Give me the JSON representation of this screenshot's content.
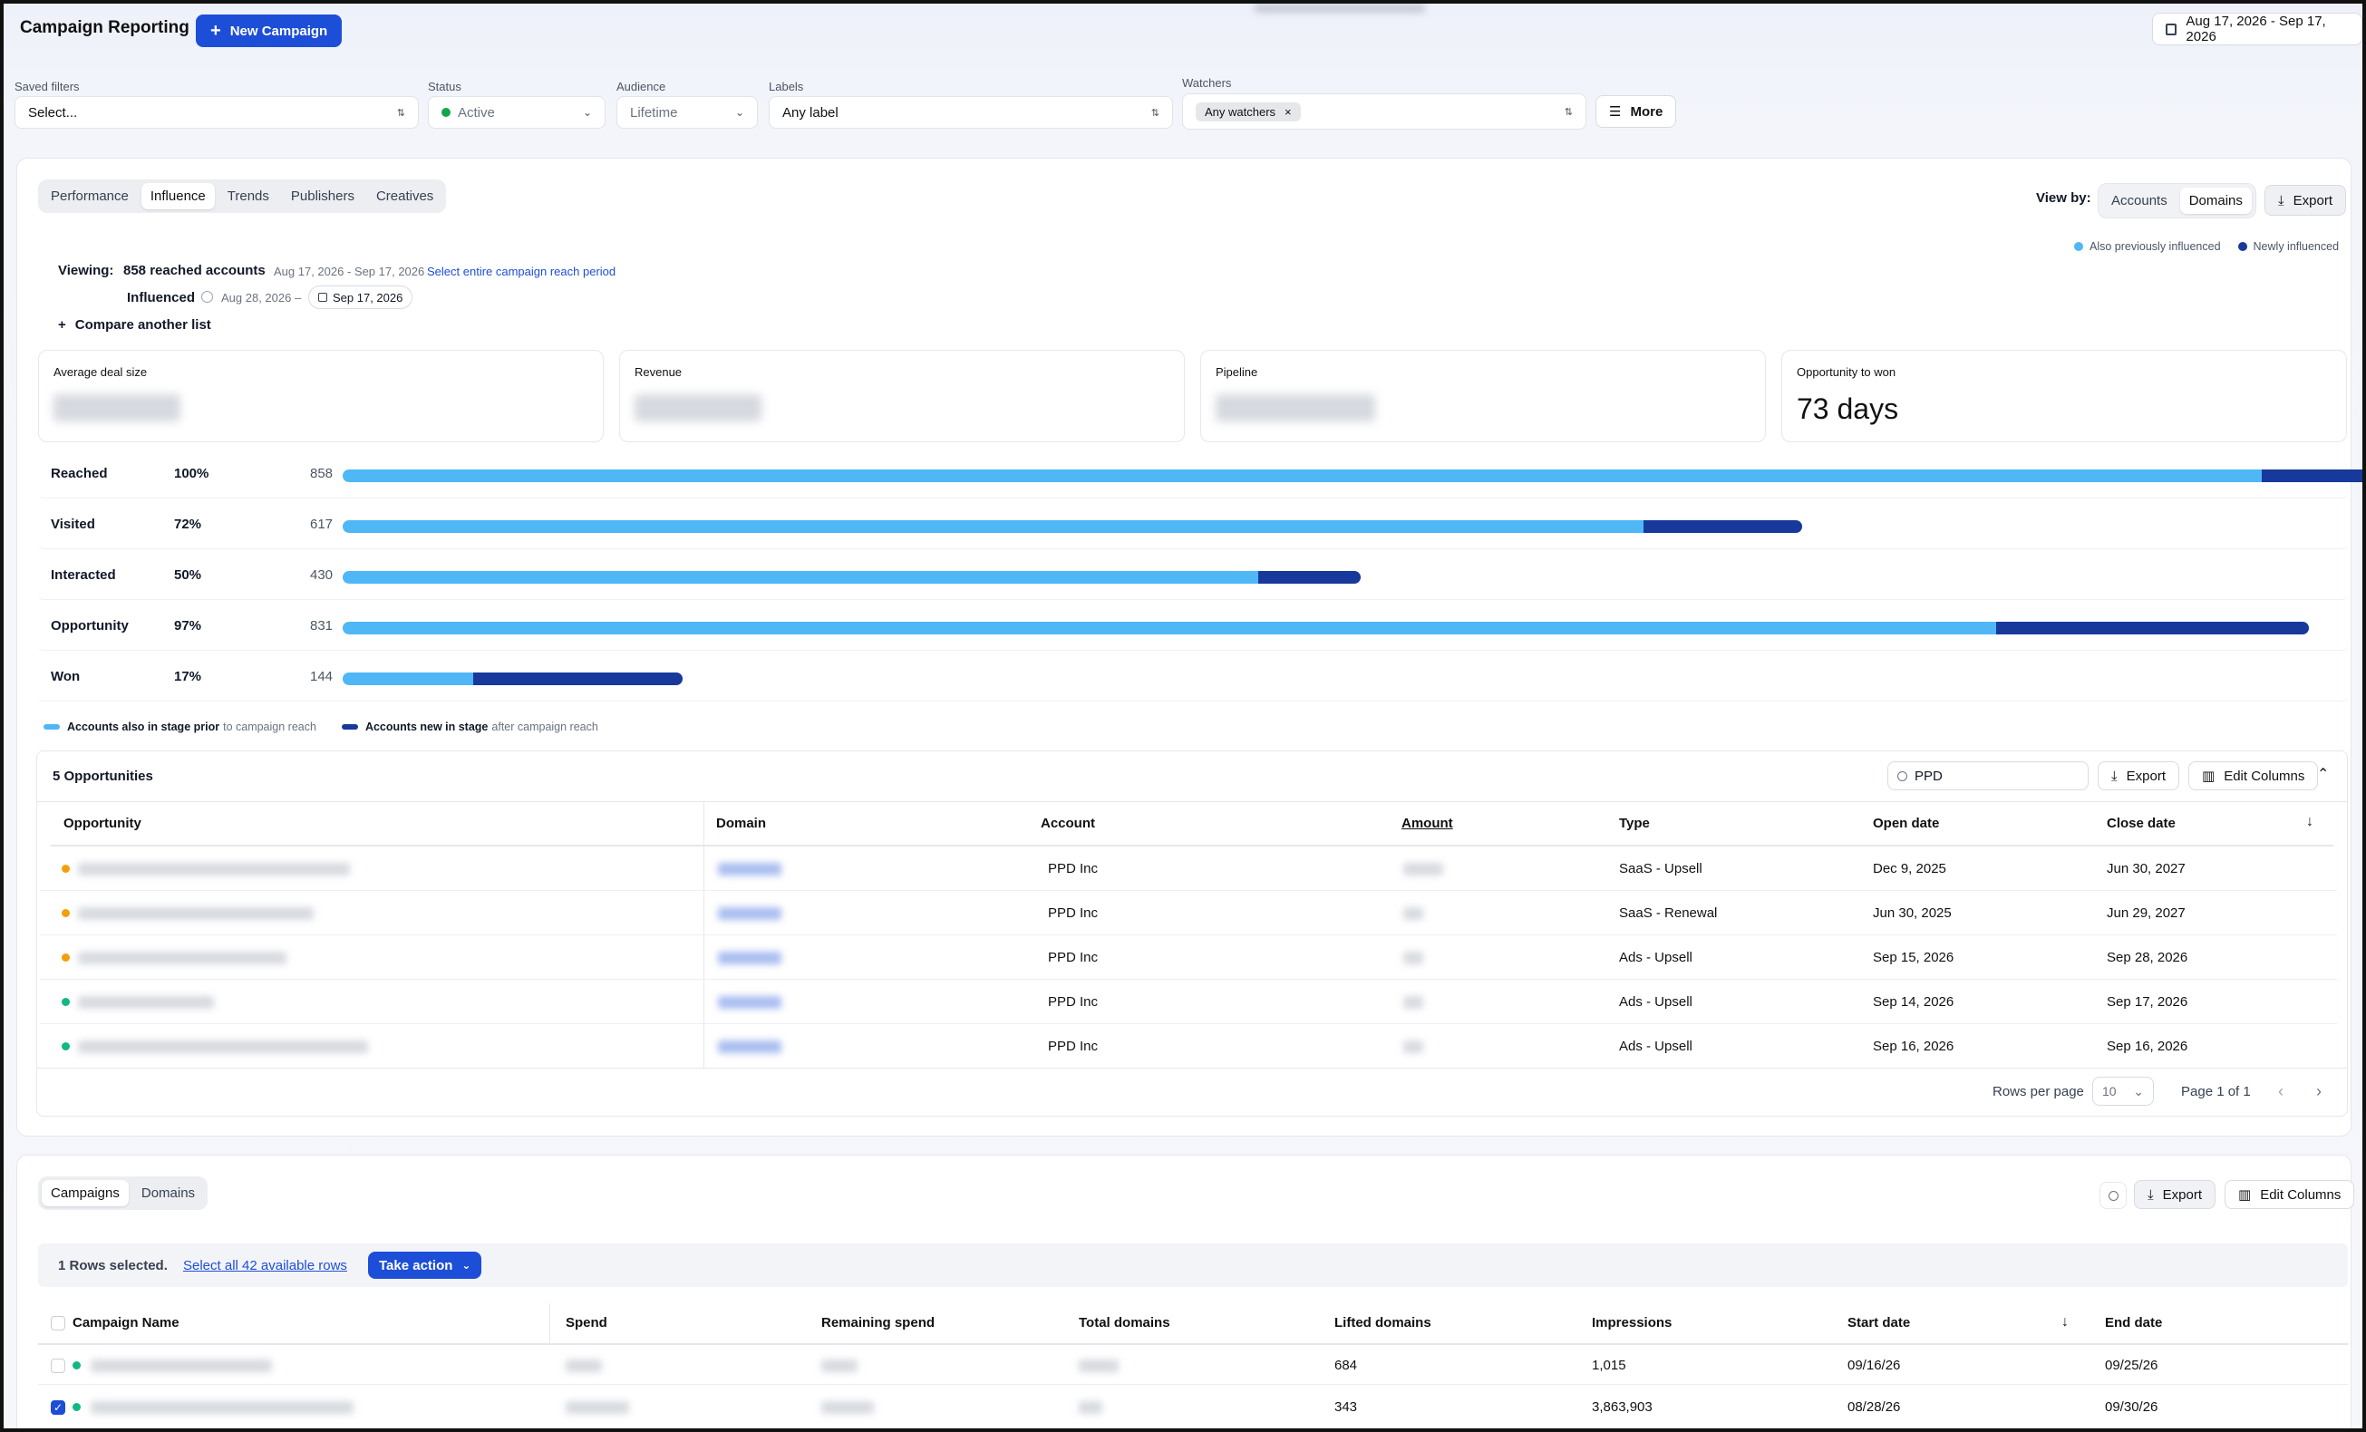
{
  "header": {
    "title": "Campaign Reporting",
    "new_campaign": "New Campaign",
    "date_range": "Aug 17, 2026 - Sep 17, 2026"
  },
  "filters": {
    "saved": {
      "label": "Saved filters",
      "value": "Select..."
    },
    "status": {
      "label": "Status",
      "value": "Active"
    },
    "audience": {
      "label": "Audience",
      "value": "Lifetime"
    },
    "labels": {
      "label": "Labels",
      "value": "Any label"
    },
    "watchers": {
      "label": "Watchers",
      "chip": "Any watchers"
    },
    "more": "More"
  },
  "tabs": [
    "Performance",
    "Influence",
    "Trends",
    "Publishers",
    "Creatives"
  ],
  "view_by": {
    "label": "View by:",
    "options": [
      "Accounts",
      "Domains"
    ],
    "export": "Export"
  },
  "legend_top": {
    "prev": "Also previously influenced",
    "new": "Newly influenced"
  },
  "viewing": {
    "label": "Viewing:",
    "count": "858 reached accounts",
    "range": "Aug 17, 2026 - Sep 17, 2026",
    "link": "Select entire campaign reach period",
    "influenced": "Influenced",
    "influenced_from": "Aug 28, 2026 –",
    "influenced_to": "Sep 17, 2026",
    "compare": "Compare another list"
  },
  "cards": [
    {
      "label": "Average deal size"
    },
    {
      "label": "Revenue"
    },
    {
      "label": "Pipeline"
    },
    {
      "label": "Opportunity to won",
      "value": "73 days"
    }
  ],
  "funnel": [
    {
      "name": "Reached",
      "pct": "100%",
      "count": "858",
      "light": 0.897,
      "dark": 0.051
    },
    {
      "name": "Visited",
      "pct": "72%",
      "count": "617",
      "light": 0.608,
      "dark": 0.074
    },
    {
      "name": "Interacted",
      "pct": "50%",
      "count": "430",
      "light": 0.428,
      "dark": 0.048
    },
    {
      "name": "Opportunity",
      "pct": "97%",
      "count": "831",
      "light": 0.773,
      "dark": 0.146
    },
    {
      "name": "Won",
      "pct": "17%",
      "count": "144",
      "light": 0.061,
      "dark": 0.098
    }
  ],
  "funnel_legend": {
    "a_bold": "Accounts also in stage prior",
    "a_rest": "to campaign reach",
    "b_bold": "Accounts new in stage",
    "b_rest": "after campaign reach"
  },
  "opps": {
    "title": "5 Opportunities",
    "search": "PPD",
    "export": "Export",
    "edit_columns": "Edit Columns",
    "columns": [
      "Opportunity",
      "Domain",
      "Account",
      "Amount",
      "Type",
      "Open date",
      "Close date"
    ],
    "rows": [
      {
        "status": "#f59e0b",
        "account": "PPD Inc",
        "type": "SaaS - Upsell",
        "open": "Dec 9, 2025",
        "close": "Jun 30, 2027"
      },
      {
        "status": "#f59e0b",
        "account": "PPD Inc",
        "type": "SaaS - Renewal",
        "open": "Jun 30, 2025",
        "close": "Jun 29, 2027"
      },
      {
        "status": "#f59e0b",
        "account": "PPD Inc",
        "type": "Ads - Upsell",
        "open": "Sep 15, 2026",
        "close": "Sep 28, 2026"
      },
      {
        "status": "#10b981",
        "account": "PPD Inc",
        "type": "Ads - Upsell",
        "open": "Sep 14, 2026",
        "close": "Sep 17, 2026"
      },
      {
        "status": "#10b981",
        "account": "PPD Inc",
        "type": "Ads - Upsell",
        "open": "Sep 16, 2026",
        "close": "Sep 16, 2026"
      }
    ],
    "rows_per_page_label": "Rows per page",
    "rows_per_page": "10",
    "page": "Page 1 of 1"
  },
  "bottom": {
    "tabs": [
      "Campaigns",
      "Domains"
    ],
    "export": "Export",
    "edit_columns": "Edit Columns",
    "selected": "1 Rows selected.",
    "select_all": "Select all 42 available rows",
    "take_action": "Take action",
    "columns": [
      "Campaign Name",
      "Spend",
      "Remaining spend",
      "Total domains",
      "Lifted domains",
      "Impressions",
      "Start date",
      "End date"
    ],
    "rows": [
      {
        "lifted": "684",
        "impressions": "1,015",
        "start": "09/16/26",
        "end": "09/25/26",
        "checked": false
      },
      {
        "lifted": "343",
        "impressions": "3,863,903",
        "start": "08/28/26",
        "end": "09/30/26",
        "checked": true
      }
    ]
  },
  "colors": {
    "primary": "#1d4ed8",
    "light_bar": "#4fb7f6",
    "dark_bar": "#17399b",
    "active": "#10b981"
  }
}
